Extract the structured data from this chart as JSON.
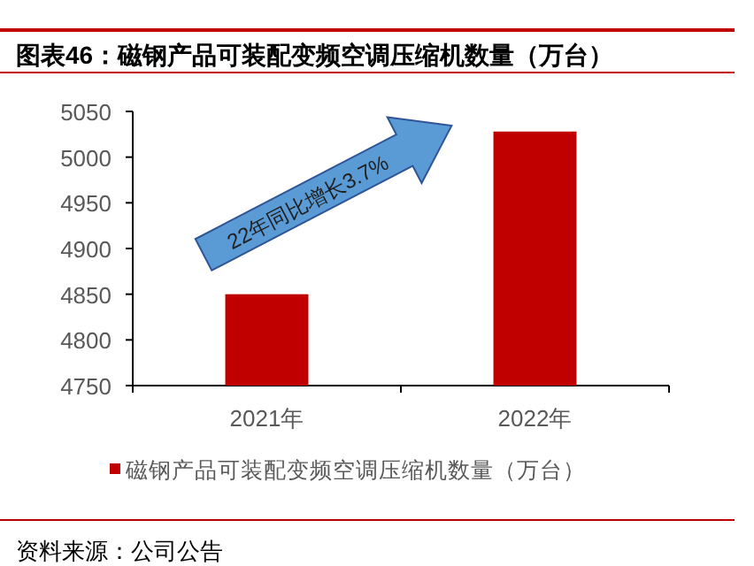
{
  "chart_data": {
    "type": "bar",
    "title": "图表46：磁钢产品可装配变频空调压缩机数量（万台）",
    "categories": [
      "2021年",
      "2022年"
    ],
    "series": [
      {
        "name": "磁钢产品可装配变频空调压缩机数量（万台）",
        "color": "#c00000",
        "values": [
          4850,
          5028
        ]
      }
    ],
    "ylim": [
      4750,
      5050
    ],
    "yticks": [
      4750,
      4800,
      4850,
      4900,
      4950,
      5000,
      5050
    ],
    "grid": false,
    "legend": "bottom",
    "annotations": [
      "22年同比增长3.7%",
      "资料来源：公司公告"
    ]
  }
}
